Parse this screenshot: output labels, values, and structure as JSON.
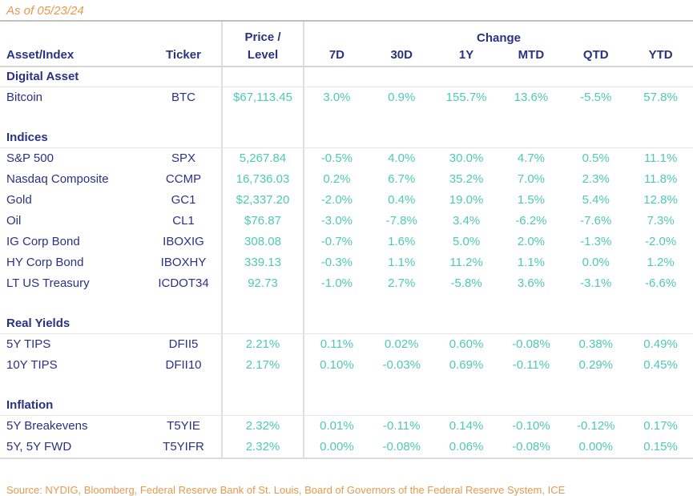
{
  "as_of": "As of 05/23/24",
  "source": "Source: NYDIG, Bloomberg, Federal Reserve Bank of St. Louis, Board of Governors of the Federal Reserve System, ICE",
  "colors": {
    "navy": "#2A3282",
    "teal": "#4FC9B3",
    "orange": "#E8984C"
  },
  "chart_data": {
    "type": "table",
    "title": "Market performance as of 05/23/24",
    "header": {
      "asset": "Asset/Index",
      "ticker": "Ticker",
      "price_line1": "Price /",
      "price_line2": "Level",
      "change_label": "Change",
      "periods": [
        "7D",
        "30D",
        "1Y",
        "MTD",
        "QTD",
        "YTD"
      ]
    },
    "sections": [
      {
        "title": "Digital Asset",
        "rows": [
          {
            "name": "Bitcoin",
            "ticker": "BTC",
            "price": "$67,113.45",
            "changes": [
              "3.0%",
              "0.9%",
              "155.7%",
              "13.6%",
              "-5.5%",
              "57.8%"
            ]
          }
        ]
      },
      {
        "title": "Indices",
        "rows": [
          {
            "name": "S&P 500",
            "ticker": "SPX",
            "price": "5,267.84",
            "changes": [
              "-0.5%",
              "4.0%",
              "30.0%",
              "4.7%",
              "0.5%",
              "11.1%"
            ]
          },
          {
            "name": "Nasdaq Composite",
            "ticker": "CCMP",
            "price": "16,736.03",
            "changes": [
              "0.2%",
              "6.7%",
              "35.2%",
              "7.0%",
              "2.3%",
              "11.8%"
            ]
          },
          {
            "name": "Gold",
            "ticker": "GC1",
            "price": "$2,337.20",
            "changes": [
              "-2.0%",
              "0.4%",
              "19.0%",
              "1.5%",
              "5.4%",
              "12.8%"
            ]
          },
          {
            "name": "Oil",
            "ticker": "CL1",
            "price": "$76.87",
            "changes": [
              "-3.0%",
              "-7.8%",
              "3.4%",
              "-6.2%",
              "-7.6%",
              "7.3%"
            ]
          },
          {
            "name": "IG Corp Bond",
            "ticker": "IBOXIG",
            "price": "308.08",
            "changes": [
              "-0.7%",
              "1.6%",
              "5.0%",
              "2.0%",
              "-1.3%",
              "-2.0%"
            ]
          },
          {
            "name": "HY Corp Bond",
            "ticker": "IBOXHY",
            "price": "339.13",
            "changes": [
              "-0.3%",
              "1.1%",
              "11.2%",
              "1.1%",
              "0.0%",
              "1.2%"
            ]
          },
          {
            "name": "LT US Treasury",
            "ticker": "ICDOT34",
            "price": "92.73",
            "changes": [
              "-1.0%",
              "2.7%",
              "-5.8%",
              "3.6%",
              "-3.1%",
              "-6.6%"
            ]
          }
        ]
      },
      {
        "title": "Real Yields",
        "rows": [
          {
            "name": "5Y TIPS",
            "ticker": "DFII5",
            "price": "2.21%",
            "changes": [
              "0.11%",
              "0.02%",
              "0.60%",
              "-0.08%",
              "0.38%",
              "0.49%"
            ]
          },
          {
            "name": "10Y TIPS",
            "ticker": "DFII10",
            "price": "2.17%",
            "changes": [
              "0.10%",
              "-0.03%",
              "0.69%",
              "-0.11%",
              "0.29%",
              "0.45%"
            ]
          }
        ]
      },
      {
        "title": "Inflation",
        "rows": [
          {
            "name": "5Y Breakevens",
            "ticker": "T5YIE",
            "price": "2.32%",
            "changes": [
              "0.01%",
              "-0.11%",
              "0.14%",
              "-0.10%",
              "-0.12%",
              "0.17%"
            ]
          },
          {
            "name": "5Y, 5Y FWD",
            "ticker": "T5YIFR",
            "price": "2.32%",
            "changes": [
              "0.00%",
              "-0.08%",
              "0.06%",
              "-0.08%",
              "0.00%",
              "0.15%"
            ]
          }
        ]
      }
    ]
  }
}
